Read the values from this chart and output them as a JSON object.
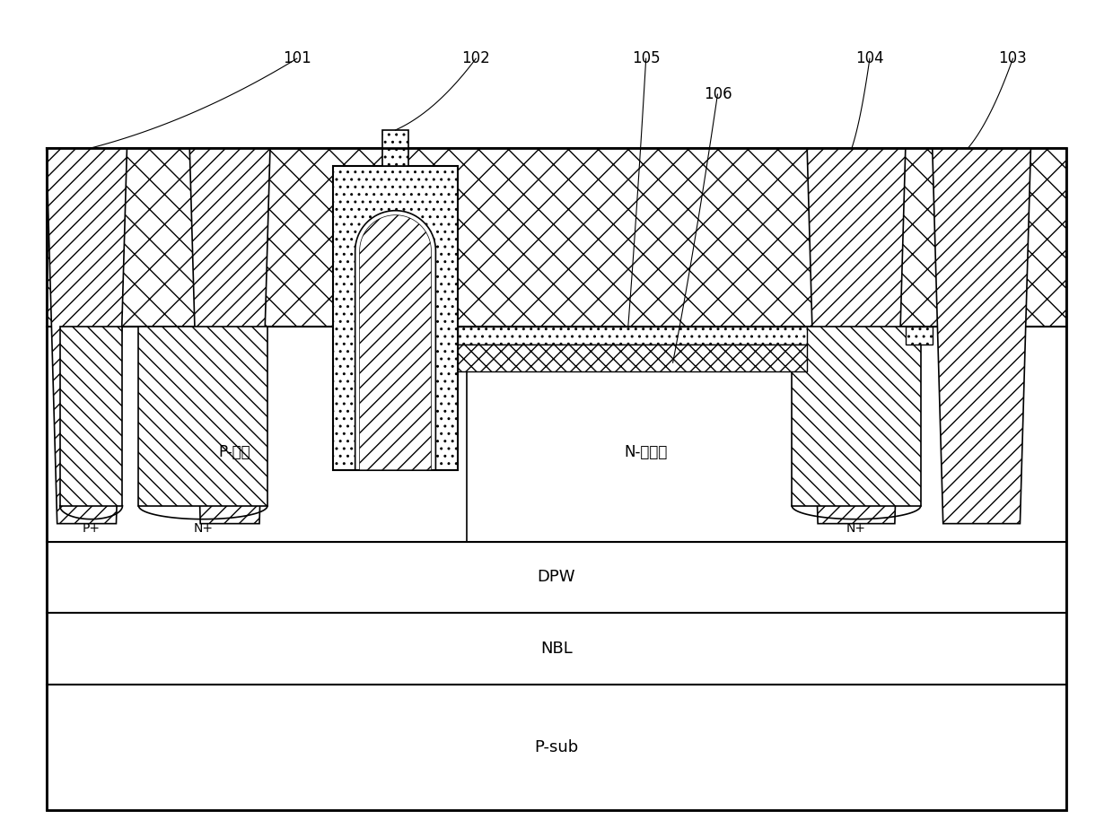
{
  "figure_width": 12.4,
  "figure_height": 9.24,
  "bg_color": "#ffffff",
  "labels": {
    "P_plus": "P+",
    "N_plus_left": "N+",
    "N_plus_right": "N+",
    "P_body": "P-体区",
    "N_drift": "N-漂移区",
    "DPW": "DPW",
    "NBL": "NBL",
    "P_sub": "P-sub"
  },
  "annotations": [
    "101",
    "102",
    "103",
    "104",
    "105",
    "106"
  ]
}
